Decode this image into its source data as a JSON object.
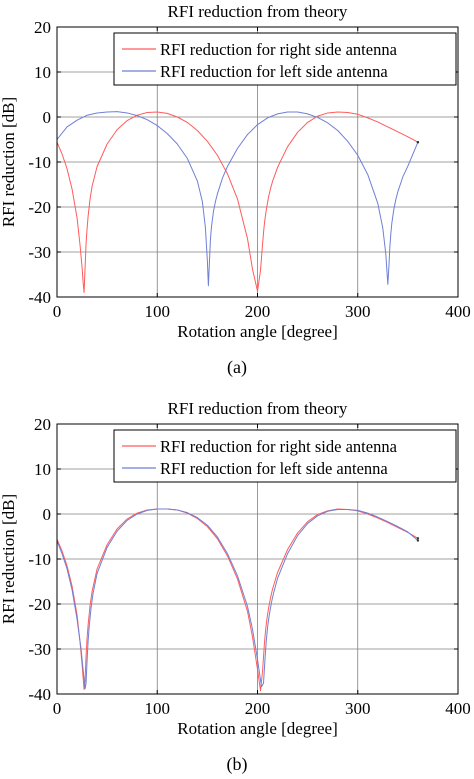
{
  "chart_data": [
    {
      "type": "line",
      "panel_label": "(a)",
      "title": "RFI reduction from theory",
      "xlabel": "Rotation angle [degree]",
      "ylabel": "RFI reduction [dB]",
      "xlim": [
        0,
        400
      ],
      "ylim": [
        -40,
        20
      ],
      "x_ticks": [
        "0",
        "100",
        "200",
        "300",
        "400"
      ],
      "y_ticks": [
        "20",
        "10",
        "0",
        "-10",
        "-20",
        "-30",
        "-40"
      ],
      "grid": true,
      "legend": "top-right",
      "series": [
        {
          "name": "RFI reduction for right side antenna",
          "color": "#ff5b5b",
          "x": [
            0,
            5,
            10,
            15,
            20,
            23,
            25,
            26,
            27,
            28,
            29,
            30,
            31,
            33,
            35,
            40,
            50,
            60,
            70,
            80,
            90,
            100,
            110,
            120,
            130,
            140,
            150,
            160,
            170,
            180,
            190,
            195,
            200,
            203,
            205,
            206,
            207,
            208,
            209,
            211,
            213,
            215,
            220,
            230,
            240,
            250,
            260,
            270,
            280,
            290,
            300,
            310,
            320,
            330,
            340,
            350,
            360
          ],
          "y": [
            -5.6,
            -8.2,
            -11.5,
            -16,
            -22.4,
            -28.5,
            -33.4,
            -36.6,
            -39,
            -33.5,
            -28.1,
            -24.8,
            -22.1,
            -18.2,
            -15.4,
            -11,
            -6,
            -2.8,
            -0.8,
            0.4,
            1,
            1.1,
            0.8,
            0,
            -1.2,
            -3,
            -5.4,
            -8.5,
            -12.6,
            -18.2,
            -27,
            -33.8,
            -38.7,
            -34.1,
            -28.4,
            -25.7,
            -23.5,
            -21.8,
            -20.3,
            -17.8,
            -15.9,
            -14.3,
            -11.2,
            -6.6,
            -3.4,
            -1.2,
            0.2,
            0.9,
            1.1,
            1,
            0.6,
            -0.2,
            -1.1,
            -2.2,
            -3.3,
            -4.4,
            -5.6
          ]
        },
        {
          "name": "RFI reduction for left side antenna",
          "color": "#6f7fd6",
          "x": [
            0,
            10,
            20,
            30,
            40,
            50,
            60,
            70,
            80,
            90,
            100,
            110,
            120,
            130,
            140,
            145,
            148,
            150,
            151,
            152,
            153,
            154,
            156,
            158,
            160,
            165,
            170,
            180,
            190,
            200,
            210,
            220,
            230,
            240,
            250,
            260,
            270,
            280,
            290,
            300,
            310,
            320,
            325,
            328,
            330,
            331,
            332,
            333,
            334,
            336,
            338,
            340,
            345,
            350,
            360
          ],
          "y": [
            -5,
            -2.2,
            -0.7,
            0.4,
            0.9,
            1.1,
            1.2,
            0.9,
            0.3,
            -0.6,
            -1.9,
            -3.7,
            -6,
            -9.2,
            -14.2,
            -18.8,
            -24.5,
            -32,
            -37.5,
            -32.5,
            -27.4,
            -24.6,
            -21.1,
            -18.8,
            -17.1,
            -13.6,
            -11,
            -7,
            -3.9,
            -1.7,
            -0.2,
            0.7,
            1.1,
            1.1,
            0.7,
            -0.1,
            -1.3,
            -3,
            -5.4,
            -8.5,
            -12.8,
            -19.2,
            -24.7,
            -30.5,
            -37.2,
            -33.5,
            -29,
            -25.9,
            -23.6,
            -20.5,
            -18.3,
            -16.6,
            -13.3,
            -10.9,
            -5.6
          ]
        }
      ]
    },
    {
      "type": "line",
      "panel_label": "(b)",
      "title": "RFI reduction from theory",
      "xlabel": "Rotation angle [degree]",
      "ylabel": "RFI reduction [dB]",
      "xlim": [
        0,
        400
      ],
      "ylim": [
        -40,
        20
      ],
      "x_ticks": [
        "0",
        "100",
        "200",
        "300",
        "400"
      ],
      "y_ticks": [
        "20",
        "10",
        "0",
        "-10",
        "-20",
        "-30",
        "-40"
      ],
      "grid": true,
      "legend": "top-right",
      "series": [
        {
          "name": "RFI reduction for right side antenna",
          "color": "#ff5b5b",
          "x": [
            0,
            5,
            10,
            15,
            20,
            23,
            25,
            27,
            28,
            29,
            30,
            31,
            33,
            35,
            40,
            50,
            60,
            70,
            80,
            90,
            100,
            110,
            120,
            130,
            140,
            150,
            160,
            170,
            180,
            190,
            195,
            200,
            203,
            205,
            207,
            208,
            209,
            210,
            211,
            213,
            215,
            220,
            230,
            240,
            250,
            260,
            270,
            280,
            290,
            300,
            310,
            320,
            330,
            340,
            350,
            360
          ],
          "y": [
            -5.6,
            -8.2,
            -11.5,
            -16,
            -22.4,
            -28.5,
            -33.4,
            -39,
            -37,
            -31.5,
            -27.6,
            -24.7,
            -20.3,
            -17.2,
            -12.2,
            -6.8,
            -3.3,
            -1.1,
            0.2,
            0.9,
            1.1,
            1.1,
            0.9,
            0.2,
            -1,
            -2.8,
            -5.5,
            -9.3,
            -14.4,
            -21.6,
            -27.3,
            -34.5,
            -39.3,
            -35,
            -28.5,
            -26,
            -24,
            -22.4,
            -21,
            -18.6,
            -16.7,
            -13,
            -7.9,
            -4.2,
            -1.7,
            -0.1,
            0.7,
            1.1,
            1,
            0.7,
            0,
            -0.9,
            -1.9,
            -3,
            -4.1,
            -5.4
          ]
        },
        {
          "name": "RFI reduction for left side antenna",
          "color": "#6f7fd6",
          "x": [
            0,
            5,
            10,
            15,
            20,
            24,
            26,
            28,
            29,
            30,
            31,
            32,
            34,
            36,
            40,
            50,
            60,
            70,
            80,
            90,
            100,
            110,
            120,
            130,
            140,
            150,
            160,
            170,
            180,
            190,
            195,
            200,
            204,
            206,
            208,
            209,
            210,
            211,
            212,
            214,
            216,
            220,
            230,
            240,
            250,
            260,
            270,
            280,
            290,
            300,
            310,
            320,
            330,
            340,
            350,
            360
          ],
          "y": [
            -6,
            -8.8,
            -12.2,
            -16.8,
            -23.4,
            -30,
            -34.5,
            -38.8,
            -37.6,
            -32.5,
            -28.3,
            -25.3,
            -20.8,
            -17.6,
            -13.2,
            -7.4,
            -3.8,
            -1.4,
            0,
            0.8,
            1.1,
            1.1,
            0.9,
            0.3,
            -0.8,
            -2.5,
            -5.1,
            -8.8,
            -13.7,
            -20.5,
            -25.6,
            -32.3,
            -38.4,
            -37.6,
            -30.4,
            -27.6,
            -25.3,
            -23.6,
            -22.1,
            -19.6,
            -17.6,
            -14.3,
            -8.8,
            -4.8,
            -2.1,
            -0.4,
            0.6,
            1,
            1,
            0.8,
            0.2,
            -0.7,
            -1.7,
            -2.8,
            -4,
            -5.9
          ]
        }
      ]
    }
  ]
}
